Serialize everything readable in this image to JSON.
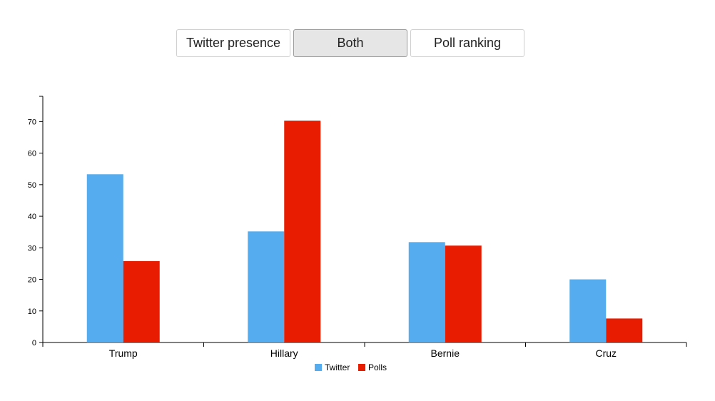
{
  "toolbar": {
    "buttons": [
      {
        "label": "Twitter presence",
        "active": false
      },
      {
        "label": "Both",
        "active": true
      },
      {
        "label": "Poll ranking",
        "active": false
      }
    ]
  },
  "colors": {
    "twitter": "#55acee",
    "polls": "#e81c00"
  },
  "chart_data": {
    "type": "bar",
    "title": "",
    "xlabel": "",
    "ylabel": "",
    "categories": [
      "Trump",
      "Hillary",
      "Bernie",
      "Cruz"
    ],
    "series": [
      {
        "name": "Twitter",
        "values": [
          53.3,
          35.2,
          31.8,
          20
        ]
      },
      {
        "name": "Polls",
        "values": [
          25.8,
          70.3,
          30.7,
          7.6
        ]
      }
    ],
    "ylim": [
      0,
      78
    ],
    "yticks": [
      0,
      10,
      20,
      30,
      40,
      50,
      60,
      70
    ],
    "grid": false,
    "legend_position": "bottom-center"
  }
}
